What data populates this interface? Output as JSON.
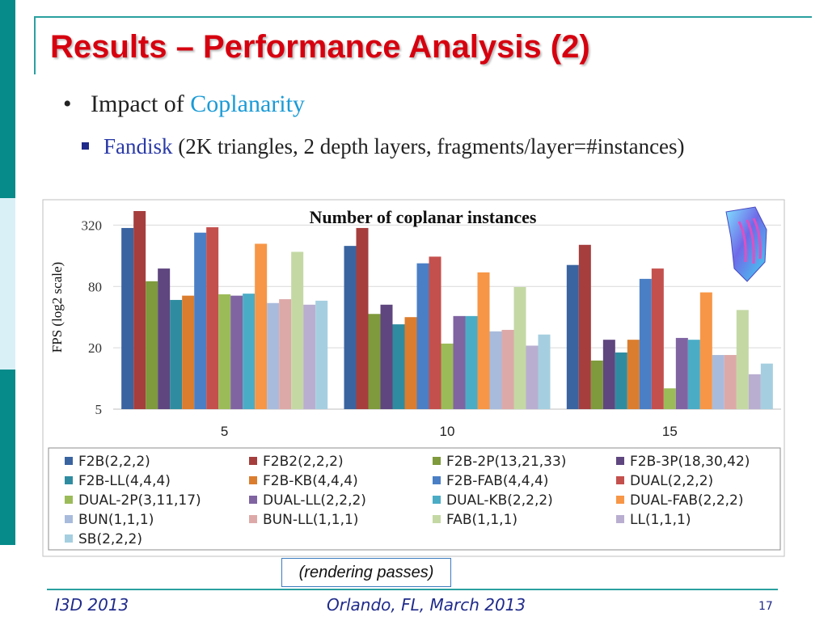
{
  "slide": {
    "title": "Results – Performance Analysis (2)",
    "bullet1_prefix": "Impact of ",
    "bullet1_highlight": "Coplanarity",
    "bullet2_highlight": "Fandisk",
    "bullet2_rest": " (2K triangles, 2 depth layers, fragments/layer=#instances)",
    "note": "(rendering passes)",
    "footer_left": "I3D 2013",
    "footer_center": "Orlando, FL, March 2013",
    "page_number": "17"
  },
  "chart_data": {
    "type": "bar",
    "title": "Number of coplanar instances",
    "xlabel": "",
    "ylabel": "FPS (log2 scale)",
    "y_scale": "log2",
    "ylim": [
      5,
      500
    ],
    "yticks": [
      5,
      20,
      80,
      320
    ],
    "grid": true,
    "legend_position": "bottom",
    "categories": [
      "5",
      "10",
      "15"
    ],
    "series": [
      {
        "name": "F2B(2,2,2)",
        "color": "#3a64a0",
        "values": [
          300,
          200,
          130
        ]
      },
      {
        "name": "F2B2(2,2,2)",
        "color": "#a63e3e",
        "values": [
          440,
          300,
          205
        ]
      },
      {
        "name": "F2B-2P(13,21,33)",
        "color": "#7e9a3c",
        "values": [
          90,
          43,
          15
        ]
      },
      {
        "name": "F2B-3P(18,30,42)",
        "color": "#5f467f",
        "values": [
          120,
          53,
          24
        ]
      },
      {
        "name": "F2B-LL(4,4,4)",
        "color": "#2f8ca0",
        "values": [
          59,
          34,
          18
        ]
      },
      {
        "name": "F2B-KB(4,4,4)",
        "color": "#db7d2e",
        "values": [
          65,
          40,
          24
        ]
      },
      {
        "name": "F2B-FAB(4,4,4)",
        "color": "#4a7fc5",
        "values": [
          270,
          135,
          95
        ]
      },
      {
        "name": "DUAL(2,2,2)",
        "color": "#c4504d",
        "values": [
          305,
          157,
          120
        ]
      },
      {
        "name": "DUAL-2P(3,11,17)",
        "color": "#9bbb59",
        "values": [
          67,
          22,
          8
        ]
      },
      {
        "name": "DUAL-LL(2,2,2)",
        "color": "#8064a2",
        "values": [
          65,
          41,
          25
        ]
      },
      {
        "name": "DUAL-KB(2,2,2)",
        "color": "#4bacc6",
        "values": [
          68,
          41,
          24
        ]
      },
      {
        "name": "DUAL-FAB(2,2,2)",
        "color": "#f79646",
        "values": [
          210,
          110,
          70
        ]
      },
      {
        "name": "BUN(1,1,1)",
        "color": "#a9bbdc",
        "values": [
          55,
          29,
          17
        ]
      },
      {
        "name": "BUN-LL(1,1,1)",
        "color": "#dda9a8",
        "values": [
          60,
          30,
          17
        ]
      },
      {
        "name": "FAB(1,1,1)",
        "color": "#c4d8a4",
        "values": [
          175,
          79,
          47
        ]
      },
      {
        "name": "LL(1,1,1)",
        "color": "#b9aed0",
        "values": [
          53,
          21,
          11
        ]
      },
      {
        "name": "SB(2,2,2)",
        "color": "#a5cfe0",
        "values": [
          58,
          27,
          14
        ]
      }
    ]
  }
}
